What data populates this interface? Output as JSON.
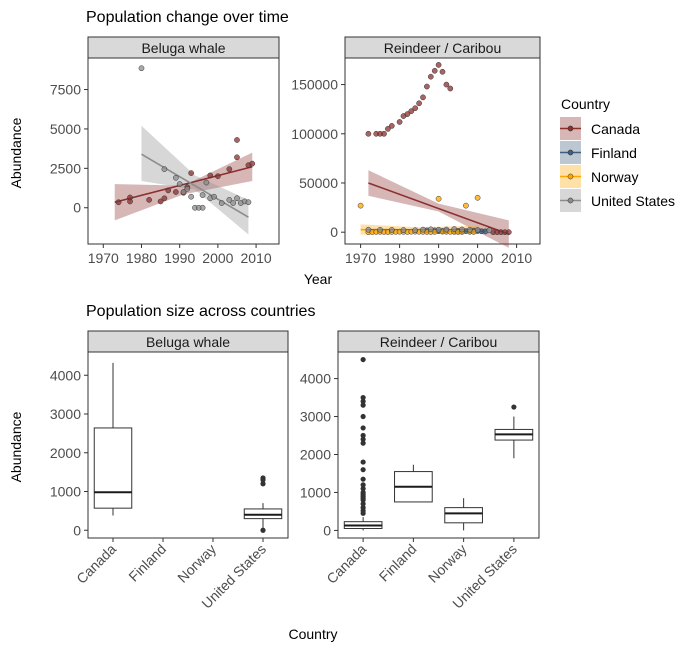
{
  "colors": {
    "Canada": "#8b2f2f",
    "Finland": "#3f5f7f",
    "Norway": "#ffa500",
    "United States": "#8c8c8c",
    "ribbon_alpha": 0.35,
    "panel_border": "#333333"
  },
  "legend": {
    "title": "Country",
    "placement": "right",
    "items": [
      "Canada",
      "Finland",
      "Norway",
      "United States"
    ]
  },
  "chart_data": [
    {
      "type": "scatter",
      "title": "Population change over time",
      "xlabel": "Year",
      "ylabel": "Abundance",
      "panels": [
        {
          "strip": "Beluga whale",
          "xlim": [
            1966,
            2016
          ],
          "ylim": [
            -2300,
            9500
          ],
          "xticks": [
            1970,
            1980,
            1990,
            2000,
            2010
          ],
          "yticks": [
            0,
            2500,
            5000,
            7500
          ],
          "series": [
            {
              "name": "Canada",
              "points": [
                [
                  1974,
                  350
                ],
                [
                  1977,
                  400
                ],
                [
                  1977,
                  650
                ],
                [
                  1982,
                  500
                ],
                [
                  1985,
                  400
                ],
                [
                  1986,
                  600
                ],
                [
                  1987,
                  1100
                ],
                [
                  1989,
                  1000
                ],
                [
                  1991,
                  950
                ],
                [
                  1992,
                  1300
                ],
                [
                  1993,
                  2200
                ],
                [
                  1998,
                  2050
                ],
                [
                  2000,
                  2000
                ],
                [
                  2003,
                  2450
                ],
                [
                  2005,
                  3200
                ],
                [
                  2005,
                  4300
                ],
                [
                  2008,
                  2700
                ],
                [
                  2009,
                  2800
                ]
              ]
            },
            {
              "name": "United States",
              "points": [
                [
                  1980,
                  8850
                ],
                [
                  1986,
                  2450
                ],
                [
                  1989,
                  1900
                ],
                [
                  1990,
                  1500
                ],
                [
                  1991,
                  1000
                ],
                [
                  1992,
                  1200
                ],
                [
                  1993,
                  700
                ],
                [
                  1994,
                  0
                ],
                [
                  1995,
                  0
                ],
                [
                  1996,
                  0
                ],
                [
                  1996,
                  800
                ],
                [
                  1997,
                  1600
                ],
                [
                  1998,
                  600
                ],
                [
                  1999,
                  700
                ],
                [
                  2001,
                  300
                ],
                [
                  2003,
                  500
                ],
                [
                  2004,
                  300
                ],
                [
                  2005,
                  600
                ],
                [
                  2006,
                  300
                ],
                [
                  2007,
                  400
                ],
                [
                  2008,
                  350
                ]
              ]
            }
          ],
          "trends": [
            {
              "name": "Canada",
              "x": [
                1973,
                2009
              ],
              "y": [
                350,
                2600
              ],
              "band_start": [
                -800,
                1500
              ],
              "band_mid": [
                850,
                1400
              ],
              "band_end": [
                1700,
                3500
              ]
            },
            {
              "name": "United States",
              "x": [
                1980,
                2008
              ],
              "y": [
                3400,
                -600
              ],
              "band_start": [
                1700,
                5200
              ],
              "band_mid": [
                1150,
                2050
              ],
              "band_end": [
                -1700,
                500
              ]
            }
          ]
        },
        {
          "strip": "Reindeer / Caribou",
          "xlim": [
            1966,
            2016
          ],
          "ylim": [
            -12000,
            177000
          ],
          "xticks": [
            1970,
            1980,
            1990,
            2000,
            2010
          ],
          "yticks": [
            0,
            50000,
            100000,
            150000
          ],
          "series": [
            {
              "name": "Canada",
              "points": [
                [
                  1972,
                  100000
                ],
                [
                  1974,
                  100000
                ],
                [
                  1975,
                  100000
                ],
                [
                  1976,
                  100000
                ],
                [
                  1977,
                  105000
                ],
                [
                  1978,
                  108000
                ],
                [
                  1980,
                  112000
                ],
                [
                  1981,
                  118000
                ],
                [
                  1982,
                  120000
                ],
                [
                  1983,
                  123000
                ],
                [
                  1984,
                  126000
                ],
                [
                  1985,
                  131000
                ],
                [
                  1986,
                  137000
                ],
                [
                  1987,
                  148000
                ],
                [
                  1988,
                  158000
                ],
                [
                  1989,
                  164000
                ],
                [
                  1990,
                  170000
                ],
                [
                  1991,
                  163000
                ],
                [
                  1992,
                  150000
                ],
                [
                  1993,
                  146000
                ],
                [
                  2004,
                  0
                ],
                [
                  2005,
                  0
                ],
                [
                  2006,
                  0
                ],
                [
                  2007,
                  0
                ],
                [
                  2008,
                  0
                ]
              ]
            },
            {
              "name": "Finland",
              "points": [
                [
                  1987,
                  1800
                ],
                [
                  1989,
                  1800
                ],
                [
                  1990,
                  1000
                ],
                [
                  1991,
                  1200
                ],
                [
                  1992,
                  1600
                ],
                [
                  1994,
                  900
                ],
                [
                  1995,
                  1300
                ],
                [
                  1996,
                  900
                ],
                [
                  1997,
                  1100
                ],
                [
                  1998,
                  1200
                ],
                [
                  1999,
                  1600
                ],
                [
                  2000,
                  1200
                ],
                [
                  2001,
                  900
                ],
                [
                  2002,
                  800
                ]
              ]
            },
            {
              "name": "Norway",
              "points": [
                [
                  1970,
                  27000
                ],
                [
                  1972,
                  0
                ],
                [
                  1973,
                  200
                ],
                [
                  1974,
                  300
                ],
                [
                  1975,
                  400
                ],
                [
                  1976,
                  300
                ],
                [
                  1977,
                  200
                ],
                [
                  1978,
                  300
                ],
                [
                  1979,
                  400
                ],
                [
                  1980,
                  500
                ],
                [
                  1981,
                  400
                ],
                [
                  1982,
                  300
                ],
                [
                  1983,
                  500
                ],
                [
                  1984,
                  600
                ],
                [
                  1985,
                  500
                ],
                [
                  1986,
                  400
                ],
                [
                  1987,
                  300
                ],
                [
                  1988,
                  200
                ],
                [
                  1989,
                  400
                ],
                [
                  1990,
                  34000
                ],
                [
                  1991,
                  600
                ],
                [
                  1992,
                  500
                ],
                [
                  1993,
                  400
                ],
                [
                  1994,
                  300
                ],
                [
                  1995,
                  200
                ],
                [
                  1996,
                  300
                ],
                [
                  1997,
                  27000
                ],
                [
                  1998,
                  400
                ],
                [
                  1999,
                  300
                ],
                [
                  2000,
                  35000
                ]
              ]
            },
            {
              "name": "United States",
              "points": [
                [
                  1972,
                  2500
                ],
                [
                  1975,
                  2400
                ],
                [
                  1978,
                  2300
                ],
                [
                  1981,
                  2100
                ],
                [
                  1984,
                  2000
                ],
                [
                  1986,
                  2600
                ],
                [
                  1988,
                  2900
                ],
                [
                  1990,
                  2500
                ],
                [
                  1992,
                  2700
                ],
                [
                  1994,
                  3200
                ],
                [
                  1996,
                  2700
                ],
                [
                  1998,
                  2400
                ],
                [
                  2000,
                  2200
                ],
                [
                  2003,
                  1900
                ]
              ]
            }
          ],
          "trends": [
            {
              "name": "Canada",
              "x": [
                1972,
                2008
              ],
              "y": [
                50000,
                -2000
              ],
              "band_start": [
                37000,
                63000
              ],
              "band_mid": [
                21000,
                29000
              ],
              "band_end": [
                -16000,
                12000
              ]
            },
            {
              "name": "Finland",
              "x": [
                1987,
                2002
              ],
              "y": [
                1600,
                1000
              ],
              "band_start": [
                0,
                3500
              ],
              "band_mid": [
                0,
                2600
              ],
              "band_end": [
                -1000,
                2500
              ]
            },
            {
              "name": "Norway",
              "x": [
                1970,
                2000
              ],
              "y": [
                2500,
                2000
              ],
              "band_start": [
                -2500,
                8000
              ],
              "band_mid": [
                -1000,
                5000
              ],
              "band_end": [
                -2000,
                6500
              ]
            },
            {
              "name": "United States",
              "x": [
                1972,
                2003
              ],
              "y": [
                2400,
                2200
              ],
              "band_start": [
                1000,
                3800
              ],
              "band_mid": [
                1500,
                3200
              ],
              "band_end": [
                800,
                3600
              ]
            }
          ]
        }
      ]
    },
    {
      "type": "box",
      "title": "Population size across countries",
      "xlabel": "Country",
      "ylabel": "Abundance",
      "categories": [
        "Canada",
        "Finland",
        "Norway",
        "United States"
      ],
      "panels": [
        {
          "strip": "Beluga whale",
          "ylim": [
            -200,
            4600
          ],
          "yticks": [
            0,
            1000,
            2000,
            3000,
            4000
          ],
          "boxes": [
            {
              "category": "Canada",
              "lower": 380,
              "q1": 570,
              "median": 980,
              "q3": 2640,
              "upper": 4320,
              "outliers": []
            },
            {
              "category": "United States",
              "lower": 0,
              "q1": 300,
              "median": 400,
              "q3": 550,
              "upper": 700,
              "outliers": [
                1200,
                1300,
                1350,
                0
              ]
            }
          ]
        },
        {
          "strip": "Reindeer / Caribou",
          "ylim": [
            -200,
            4700
          ],
          "yticks": [
            0,
            1000,
            2000,
            3000,
            4000
          ],
          "boxes": [
            {
              "category": "Canada",
              "lower": 0,
              "q1": 50,
              "median": 130,
              "q3": 230,
              "upper": 350,
              "outliers": [
                450,
                520,
                600,
                700,
                800,
                850,
                900,
                950,
                1000,
                1100,
                1200,
                1350,
                1600,
                1800,
                2300,
                2400,
                2500,
                2700,
                3000,
                3300,
                3400,
                3500,
                4500
              ]
            },
            {
              "category": "Finland",
              "lower": 750,
              "q1": 750,
              "median": 1150,
              "q3": 1550,
              "upper": 1730,
              "outliers": []
            },
            {
              "category": "Norway",
              "lower": 0,
              "q1": 200,
              "median": 450,
              "q3": 600,
              "upper": 850,
              "outliers": []
            },
            {
              "category": "United States",
              "lower": 1900,
              "q1": 2380,
              "median": 2530,
              "q3": 2660,
              "upper": 3000,
              "outliers": [
                3250
              ]
            }
          ]
        }
      ]
    }
  ]
}
